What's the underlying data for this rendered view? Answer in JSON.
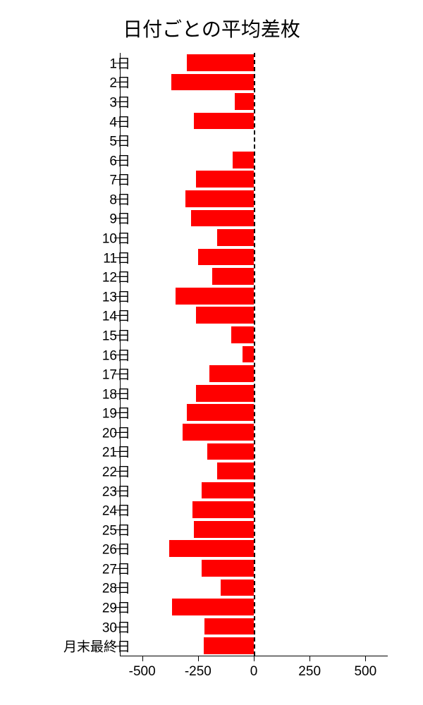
{
  "chart": {
    "type": "bar-horizontal",
    "title": "日付ごとの平均差枚",
    "title_fontsize": 28,
    "background_color": "#ffffff",
    "bar_color": "#ff0000",
    "axis_color": "#000000",
    "label_color": "#000000",
    "label_fontsize": 19,
    "xlim": [
      -600,
      600
    ],
    "xticks": [
      -500,
      -250,
      0,
      250,
      500
    ],
    "xtick_labels": [
      "-500",
      "-250",
      "0",
      "250",
      "500"
    ],
    "zero_line_dashed": true,
    "bar_height_ratio": 0.86,
    "categories": [
      "1日",
      "2日",
      "3日",
      "4日",
      "5日",
      "6日",
      "7日",
      "8日",
      "9日",
      "10日",
      "11日",
      "12日",
      "13日",
      "14日",
      "15日",
      "16日",
      "17日",
      "18日",
      "19日",
      "20日",
      "21日",
      "22日",
      "23日",
      "24日",
      "25日",
      "26日",
      "27日",
      "28日",
      "29日",
      "30日",
      "月末最終日"
    ],
    "values": [
      -300,
      -370,
      -85,
      -270,
      0,
      -95,
      -260,
      -305,
      -280,
      -165,
      -250,
      -185,
      -350,
      -260,
      -100,
      -50,
      -200,
      -260,
      -300,
      -320,
      -210,
      -165,
      -235,
      -275,
      -270,
      -380,
      -235,
      -150,
      -365,
      -220,
      -225
    ]
  }
}
